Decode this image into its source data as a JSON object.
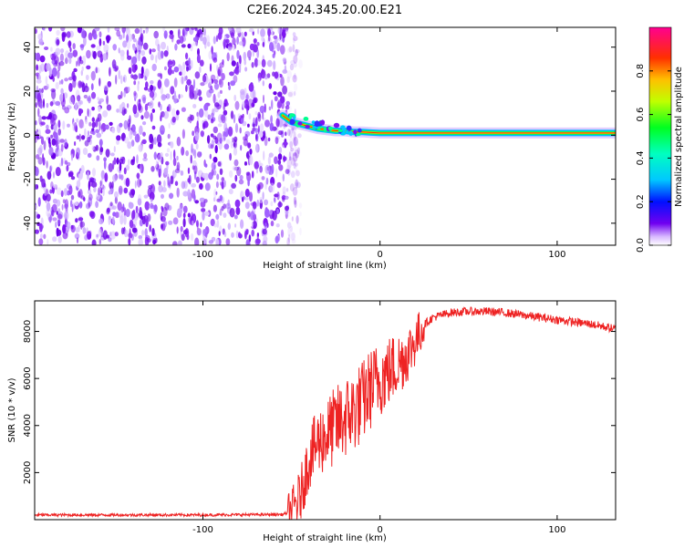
{
  "title": "C2E6.2024.345.20.00.E21",
  "chart_data": [
    {
      "type": "heatmap",
      "name": "spectrogram",
      "xlabel": "Height of straight line (km)",
      "ylabel": "Frequency (Hz)",
      "xlim": [
        -195,
        133
      ],
      "ylim": [
        -50,
        49
      ],
      "xticks": [
        -100,
        0,
        100
      ],
      "yticks": [
        -40,
        -20,
        0,
        20,
        40
      ],
      "noise_region_km": [
        -195,
        -52
      ],
      "signal_track": {
        "x": [
          -55,
          -50,
          -45,
          -40,
          -35,
          -30,
          -25,
          -20,
          -15,
          -10,
          -5,
          0,
          10,
          20,
          40,
          60,
          80,
          100,
          120,
          133
        ],
        "freq_hz": [
          9,
          6,
          5,
          4,
          3,
          2.5,
          2,
          2,
          1.5,
          1.5,
          1.2,
          1,
          1,
          1,
          1,
          1,
          1,
          1,
          1,
          1
        ]
      },
      "colorbar": {
        "label": "Normalized spectral amplitude",
        "range": [
          0,
          1
        ],
        "ticks": [
          0.0,
          0.2,
          0.4,
          0.6,
          0.8
        ],
        "tick_labels": [
          "0.0",
          "0.2",
          "0.4",
          "0.6",
          "0.8"
        ],
        "colors": [
          "#ffffff",
          "#c8a0ff",
          "#6000e0",
          "#0010ff",
          "#00c8ff",
          "#00ff60",
          "#a0ff00",
          "#ffff00",
          "#ff8000",
          "#ff0000",
          "#ff0080"
        ]
      },
      "series_color": "#7b00ff"
    },
    {
      "type": "line",
      "name": "snr",
      "xlabel": "Height of straight line (km)",
      "ylabel": "SNR (10 * v/v)",
      "xlim": [
        -195,
        133
      ],
      "ylim": [
        0,
        9300
      ],
      "xticks": [
        -100,
        0,
        100
      ],
      "yticks": [
        2000,
        4000,
        6000,
        8000
      ],
      "line_color": "#ee2222",
      "series": [
        {
          "name": "SNR",
          "x": [
            -195,
            -150,
            -100,
            -55,
            -50,
            -45,
            -40,
            -35,
            -30,
            -25,
            -20,
            -15,
            -10,
            -5,
            0,
            5,
            10,
            15,
            20,
            25,
            30,
            35,
            40,
            50,
            60,
            70,
            80,
            90,
            100,
            110,
            120,
            133
          ],
          "values": [
            200,
            200,
            200,
            220,
            350,
            1000,
            2600,
            3300,
            3600,
            4000,
            4300,
            4600,
            5000,
            5600,
            6000,
            6300,
            6600,
            7000,
            7600,
            8300,
            8600,
            8700,
            8800,
            8850,
            8850,
            8800,
            8700,
            8600,
            8500,
            8400,
            8300,
            8100
          ]
        }
      ]
    }
  ]
}
